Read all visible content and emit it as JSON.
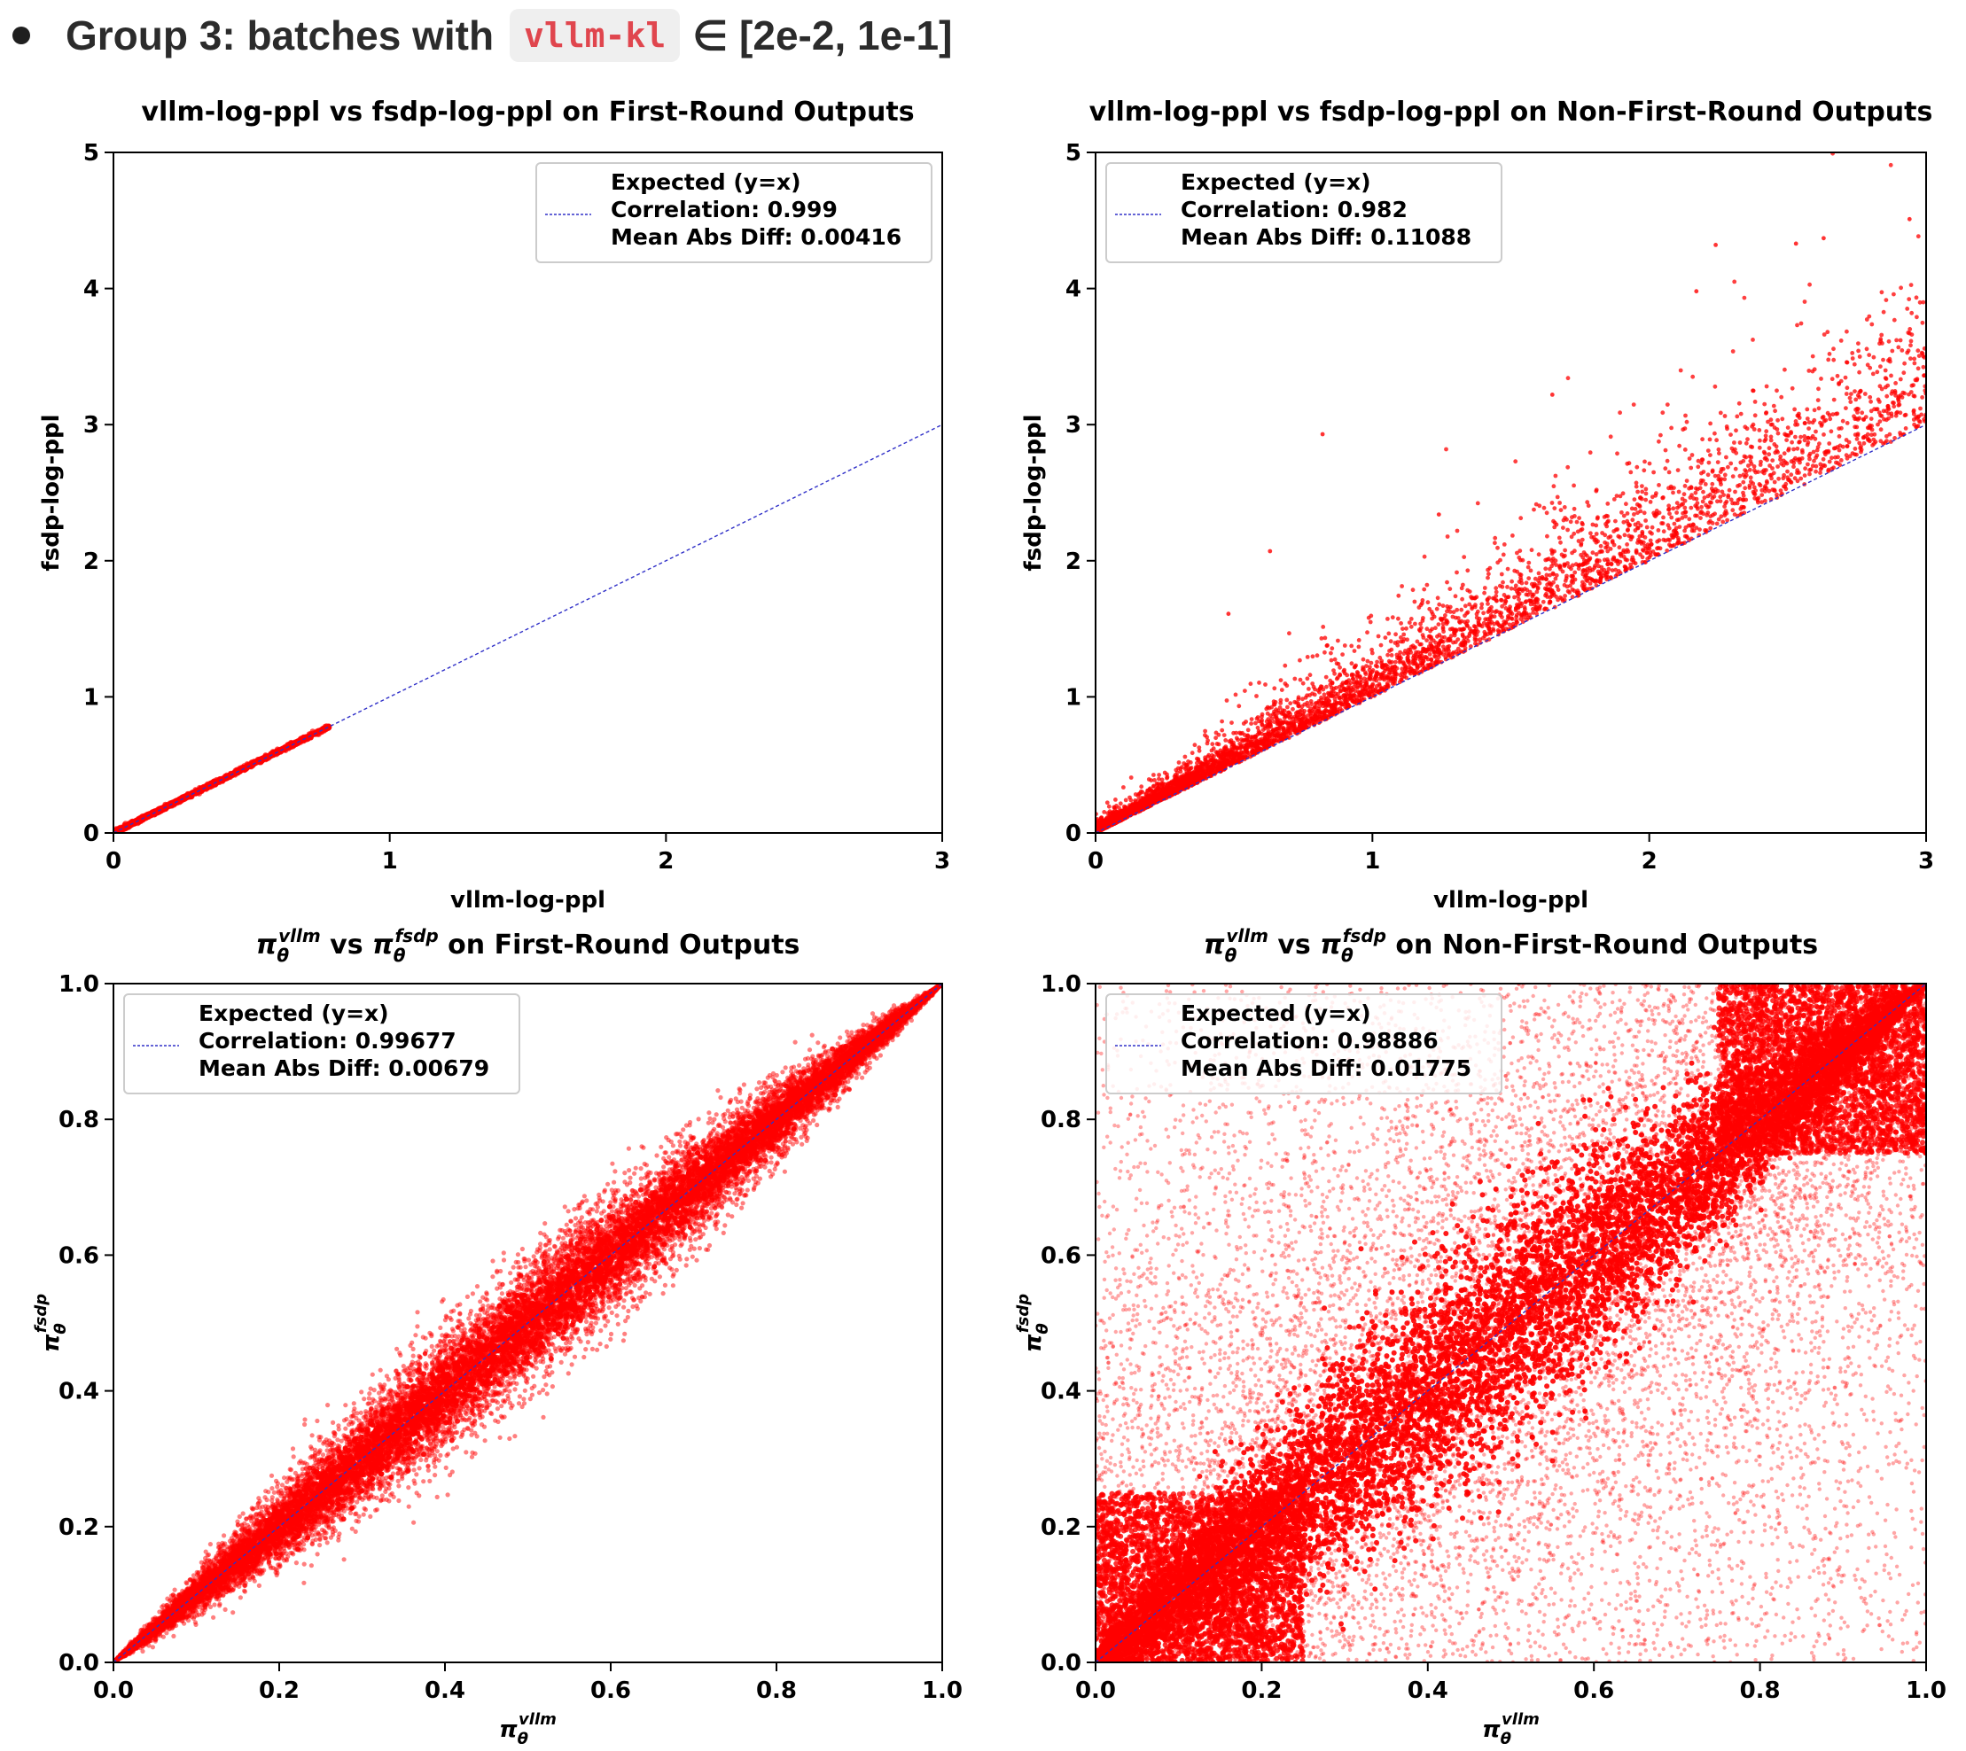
{
  "header": {
    "prefix": "Group 3:  batches with",
    "code": "vllm-kl",
    "suffix": "∈ [2e-2, 1e-1]"
  },
  "colors": {
    "points": "#ff0000",
    "expected_line": "#3030c8",
    "axis": "#000000",
    "legend_border": "#cccccc"
  },
  "chart_data": [
    {
      "id": "ppl-first",
      "type": "scatter",
      "title": "vllm-log-ppl vs fsdp-log-ppl on First-Round Outputs",
      "xlabel": "vllm-log-ppl",
      "ylabel": "fsdp-log-ppl",
      "xlim": [
        0,
        3
      ],
      "ylim": [
        0,
        5
      ],
      "xticks": [
        "0",
        "1",
        "2",
        "3"
      ],
      "xtick_values": [
        0,
        1,
        2,
        3
      ],
      "yticks": [
        "0",
        "1",
        "2",
        "3",
        "4",
        "5"
      ],
      "ytick_values": [
        0,
        1,
        2,
        3,
        4,
        5
      ],
      "legend": {
        "location": "upper-right",
        "lines": [
          "Expected (y=x)",
          "Correlation: 0.999",
          "Mean Abs Diff: 0.00416"
        ]
      },
      "reference_line": {
        "label": "Expected (y=x)",
        "from": [
          0,
          0
        ],
        "to": [
          3,
          3
        ]
      },
      "distribution": {
        "x_range": [
          0,
          0.78
        ],
        "spread_above": 0.015,
        "spread_below": 0.01,
        "n_points": 1400,
        "kind": "tight"
      }
    },
    {
      "id": "ppl-nonfirst",
      "type": "scatter",
      "title": "vllm-log-ppl vs fsdp-log-ppl on Non-First-Round Outputs",
      "xlabel": "vllm-log-ppl",
      "ylabel": "fsdp-log-ppl",
      "xlim": [
        0,
        3
      ],
      "ylim": [
        0,
        5
      ],
      "xticks": [
        "0",
        "1",
        "2",
        "3"
      ],
      "xtick_values": [
        0,
        1,
        2,
        3
      ],
      "yticks": [
        "0",
        "1",
        "2",
        "3",
        "4",
        "5"
      ],
      "ytick_values": [
        0,
        1,
        2,
        3,
        4,
        5
      ],
      "legend": {
        "location": "upper-left",
        "lines": [
          "Expected (y=x)",
          "Correlation: 0.982",
          "Mean Abs Diff: 0.11088"
        ]
      },
      "reference_line": {
        "label": "Expected (y=x)",
        "from": [
          0,
          0
        ],
        "to": [
          3,
          3
        ]
      },
      "distribution": {
        "x_range": [
          0,
          3
        ],
        "spread_above": 0.35,
        "spread_below": 0.0,
        "n_points": 5200,
        "kind": "above-skew",
        "outliers": [
          [
            0.82,
            2.93
          ],
          [
            1.24,
            2.34
          ],
          [
            0.63,
            2.07
          ],
          [
            2.24,
            4.32
          ],
          [
            2.53,
            4.33
          ],
          [
            2.63,
            4.37
          ],
          [
            2.94,
            4.51
          ],
          [
            2.17,
            3.98
          ],
          [
            1.65,
            3.22
          ],
          [
            0.48,
            1.61
          ]
        ]
      }
    },
    {
      "id": "pi-first",
      "type": "scatter",
      "title_parts": {
        "a": "π",
        "a_sub": "θ",
        "a_sup": "vllm",
        "mid": " vs ",
        "b": "π",
        "b_sub": "θ",
        "b_sup": "fsdp",
        "end": " on First-Round Outputs"
      },
      "xlabel_parts": {
        "base": "π",
        "sub": "θ",
        "sup": "vllm"
      },
      "ylabel_parts": {
        "base": "π",
        "sub": "θ",
        "sup": "fsdp"
      },
      "xlim": [
        0,
        1
      ],
      "ylim": [
        0,
        1
      ],
      "xticks": [
        "0.0",
        "0.2",
        "0.4",
        "0.6",
        "0.8",
        "1.0"
      ],
      "xtick_values": [
        0,
        0.2,
        0.4,
        0.6,
        0.8,
        1.0
      ],
      "yticks": [
        "0.0",
        "0.2",
        "0.4",
        "0.6",
        "0.8",
        "1.0"
      ],
      "ytick_values": [
        0,
        0.2,
        0.4,
        0.6,
        0.8,
        1.0
      ],
      "legend": {
        "location": "upper-left",
        "lines": [
          "Expected (y=x)",
          "Correlation: 0.99677",
          "Mean Abs Diff: 0.00679"
        ]
      },
      "reference_line": {
        "label": "Expected (y=x)",
        "from": [
          0,
          0
        ],
        "to": [
          1,
          1
        ]
      },
      "distribution": {
        "x_range": [
          0,
          1
        ],
        "band_halfwidth": 0.09,
        "n_points": 16000,
        "kind": "lens"
      }
    },
    {
      "id": "pi-nonfirst",
      "type": "scatter",
      "title_parts": {
        "a": "π",
        "a_sub": "θ",
        "a_sup": "vllm",
        "mid": " vs ",
        "b": "π",
        "b_sub": "θ",
        "b_sup": "fsdp",
        "end": " on Non-First-Round Outputs"
      },
      "xlabel_parts": {
        "base": "π",
        "sub": "θ",
        "sup": "vllm"
      },
      "ylabel_parts": {
        "base": "π",
        "sub": "θ",
        "sup": "fsdp"
      },
      "xlim": [
        0,
        1
      ],
      "ylim": [
        0,
        1
      ],
      "xticks": [
        "0.0",
        "0.2",
        "0.4",
        "0.6",
        "0.8",
        "1.0"
      ],
      "xtick_values": [
        0,
        0.2,
        0.4,
        0.6,
        0.8,
        1.0
      ],
      "yticks": [
        "0.0",
        "0.2",
        "0.4",
        "0.6",
        "0.8",
        "1.0"
      ],
      "ytick_values": [
        0,
        0.2,
        0.4,
        0.6,
        0.8,
        1.0
      ],
      "legend": {
        "location": "upper-left",
        "lines": [
          "Expected (y=x)",
          "Correlation: 0.98886",
          "Mean Abs Diff: 0.01775"
        ]
      },
      "reference_line": {
        "label": "Expected (y=x)",
        "from": [
          0,
          0
        ],
        "to": [
          1,
          1
        ]
      },
      "distribution": {
        "x_range": [
          0,
          1
        ],
        "band_halfwidth": 0.14,
        "n_points": 22000,
        "kind": "wide"
      }
    }
  ]
}
